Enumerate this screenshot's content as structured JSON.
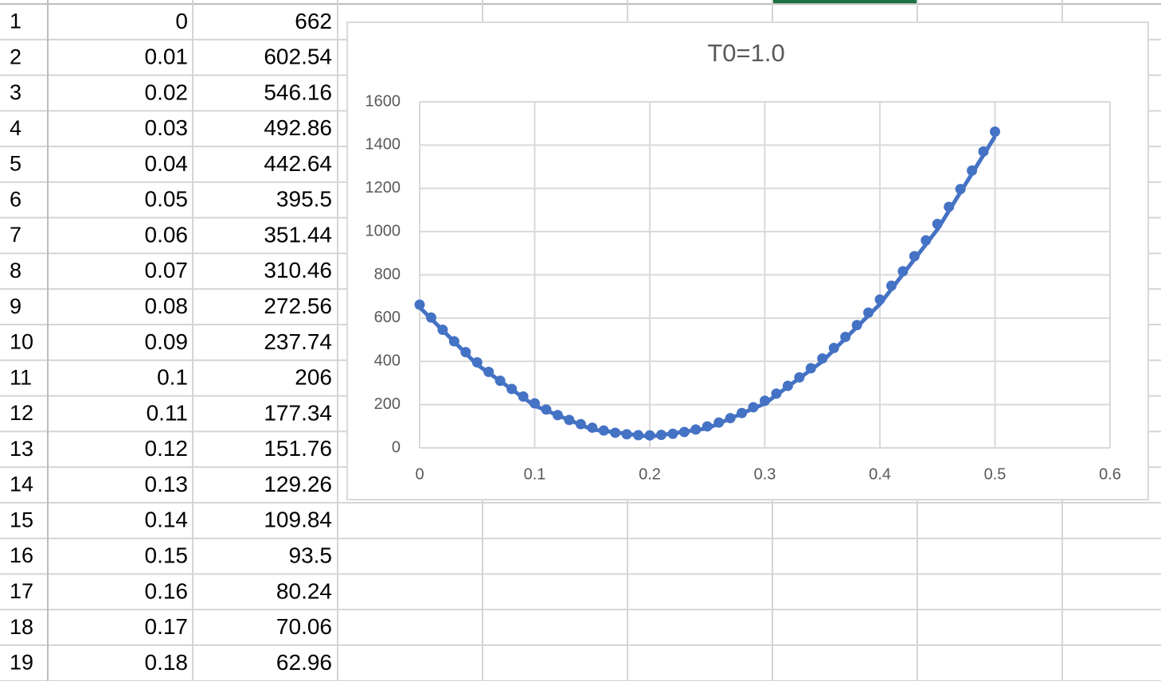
{
  "table": {
    "rows": [
      [
        1,
        0,
        662
      ],
      [
        2,
        0.01,
        602.54
      ],
      [
        3,
        0.02,
        546.16
      ],
      [
        4,
        0.03,
        492.86
      ],
      [
        5,
        0.04,
        442.64
      ],
      [
        6,
        0.05,
        395.5
      ],
      [
        7,
        0.06,
        351.44
      ],
      [
        8,
        0.07,
        310.46
      ],
      [
        9,
        0.08,
        272.56
      ],
      [
        10,
        0.09,
        237.74
      ],
      [
        11,
        0.1,
        206
      ],
      [
        12,
        0.11,
        177.34
      ],
      [
        13,
        0.12,
        151.76
      ],
      [
        14,
        0.13,
        129.26
      ],
      [
        15,
        0.14,
        109.84
      ],
      [
        16,
        0.15,
        93.5
      ],
      [
        17,
        0.16,
        80.24
      ],
      [
        18,
        0.17,
        70.06
      ],
      [
        19,
        0.18,
        62.96
      ]
    ]
  },
  "chart_data": {
    "type": "scatter",
    "title": "T0=1.0",
    "series": [
      {
        "color": "#4472c4",
        "style": "markers",
        "x": [
          0,
          0.01,
          0.02,
          0.03,
          0.04,
          0.05,
          0.06,
          0.07,
          0.08,
          0.09,
          0.1,
          0.11,
          0.12,
          0.13,
          0.14,
          0.15,
          0.16,
          0.17,
          0.18,
          0.19,
          0.2,
          0.21,
          0.22,
          0.23,
          0.24,
          0.25,
          0.26,
          0.27,
          0.28,
          0.29,
          0.3,
          0.31,
          0.32,
          0.33,
          0.34,
          0.35,
          0.36,
          0.37,
          0.38,
          0.39,
          0.4,
          0.41,
          0.42,
          0.43,
          0.44,
          0.45,
          0.46,
          0.47,
          0.48,
          0.49,
          0.5
        ],
        "values": [
          662,
          602.54,
          546.16,
          492.86,
          442.64,
          395.5,
          351.44,
          310.46,
          272.56,
          237.74,
          206,
          177.34,
          151.76,
          129.26,
          109.84,
          93.5,
          80.24,
          70.06,
          62.96,
          58.94,
          58,
          60.14,
          65.36,
          73.66,
          85.04,
          99.5,
          117.04,
          137.66,
          161.36,
          188.14,
          218,
          250.94,
          286.96,
          326.06,
          368.24,
          413.5,
          461.84,
          513.26,
          567.76,
          625.34,
          686,
          749.74,
          816.56,
          886.46,
          959.44,
          1035.5,
          1114.64,
          1196.86,
          1282.16,
          1370.54,
          1462
        ]
      },
      {
        "color": "#4472c4",
        "style": "line",
        "x": [
          0,
          0.05,
          0.1,
          0.15,
          0.2,
          0.25,
          0.3,
          0.35,
          0.4,
          0.45,
          0.5
        ],
        "values": [
          650,
          385,
          195,
          85,
          52,
          90,
          205,
          400,
          665,
          1010,
          1440
        ]
      }
    ],
    "xlim": [
      0,
      0.6
    ],
    "xticks": [
      0,
      0.1,
      0.2,
      0.3,
      0.4,
      0.5,
      0.6
    ],
    "ylim": [
      0,
      1600
    ],
    "yticks": [
      0,
      200,
      400,
      600,
      800,
      1000,
      1200,
      1400,
      1600
    ],
    "grid": true
  }
}
